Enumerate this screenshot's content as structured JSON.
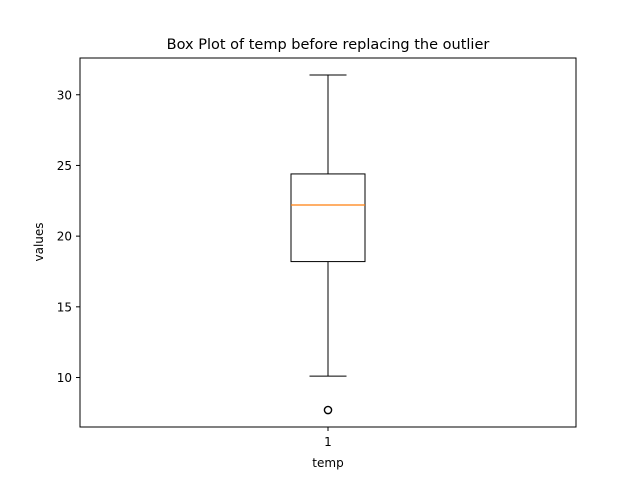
{
  "chart_data": {
    "type": "box",
    "title": "Box Plot of temp before replacing the outlier",
    "xlabel": "temp",
    "ylabel": "values",
    "x_ticks": [
      "1"
    ],
    "y_ticks": [
      10,
      15,
      20,
      25,
      30
    ],
    "ylim": [
      6.5,
      32.6
    ],
    "grid": false,
    "series": [
      {
        "category": "1",
        "whisker_low": 10.1,
        "q1": 18.2,
        "median": 22.2,
        "q3": 24.4,
        "whisker_high": 31.4,
        "outliers": [
          7.7
        ]
      }
    ],
    "colors": {
      "box": "#000000",
      "median": "#ff7f0e",
      "whisker": "#000000",
      "outlier": "#000000"
    }
  }
}
